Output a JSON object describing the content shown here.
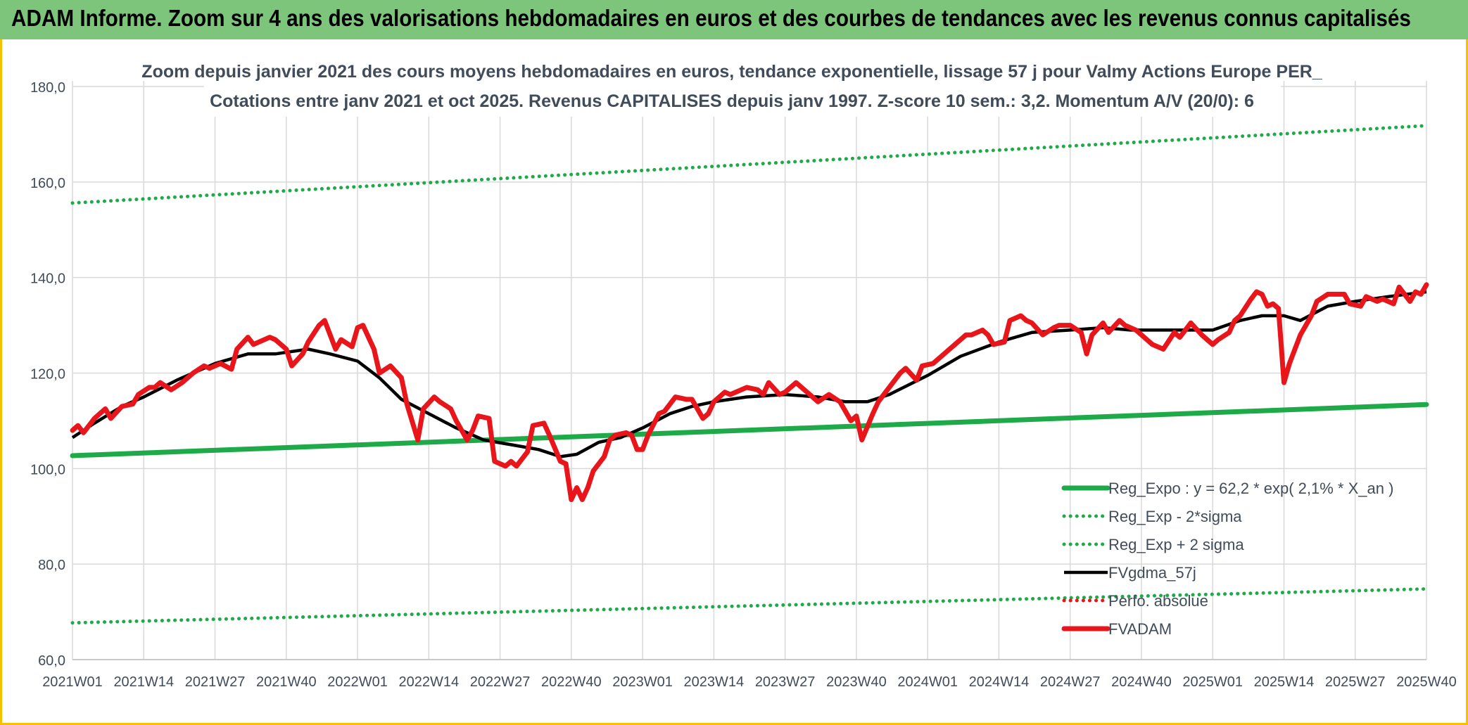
{
  "banner": {
    "title": "ADAM Informe. Zoom sur 4 ans des valorisations hebdomadaires en euros et des courbes de tendances avec les revenus connus capitalisés"
  },
  "colors": {
    "banner": "#7cc57b",
    "frame": "#f6c200",
    "reg_expo": "#1faa4a",
    "sigma": "#1faa4a",
    "gdma": "#000000",
    "perfo": "#e8151b",
    "fvadam": "#e8151b",
    "grid": "#d9d9d9",
    "text": "#404c5a"
  },
  "chart_data": {
    "type": "line",
    "title": "Zoom depuis janvier 2021 des cours moyens hebdomadaires en euros, tendance exponentielle, lissage 57 j pour Valmy Actions Europe PER_",
    "subtitle": "Cotations entre janv 2021 et oct 2025. Revenus CAPITALISES depuis janv 1997. Z-score 10 sem.: 3,2. Momentum A/V (20/0): 6",
    "xlabel": "",
    "ylabel": "",
    "ylim": [
      60,
      180
    ],
    "yticks": [
      "60,0",
      "80,0",
      "100,0",
      "120,0",
      "140,0",
      "160,0",
      "180,0"
    ],
    "xticks": [
      "2021W01",
      "2021W14",
      "2021W27",
      "2021W40",
      "2022W01",
      "2022W14",
      "2022W27",
      "2022W40",
      "2023W01",
      "2023W14",
      "2023W27",
      "2023W40",
      "2024W01",
      "2024W14",
      "2024W27",
      "2024W40",
      "2025W01",
      "2025W14",
      "2025W27",
      "2025W40"
    ],
    "grid": true,
    "legend_position": "bottom-right",
    "series": [
      {
        "name": "Reg_Expo : y = 62,2 * exp( 2,1% *  X_an )",
        "style": "solid-thick",
        "color": "#1faa4a",
        "x": [
          "2021W01",
          "2025W40"
        ],
        "y": [
          102.7,
          113.4
        ]
      },
      {
        "name": "Reg_Exp - 2*sigma",
        "style": "dotted",
        "color": "#1faa4a",
        "x": [
          "2021W01",
          "2025W40"
        ],
        "y": [
          67.7,
          74.8
        ]
      },
      {
        "name": "Reg_Exp + 2 sigma",
        "style": "dotted",
        "color": "#1faa4a",
        "x": [
          "2021W01",
          "2025W40"
        ],
        "y": [
          155.6,
          171.8
        ]
      },
      {
        "name": "FVgdma_57j",
        "style": "solid",
        "color": "#000000",
        "x": [
          "2021W01",
          "2021W05",
          "2021W10",
          "2021W14",
          "2021W20",
          "2021W27",
          "2021W33",
          "2021W38",
          "2021W44",
          "2021W48",
          "2022W01",
          "2022W05",
          "2022W09",
          "2022W14",
          "2022W19",
          "2022W24",
          "2022W29",
          "2022W34",
          "2022W38",
          "2022W41",
          "2022W45",
          "2022W49",
          "2023W01",
          "2023W06",
          "2023W10",
          "2023W14",
          "2023W20",
          "2023W27",
          "2023W33",
          "2023W38",
          "2023W42",
          "2023W46",
          "2024W01",
          "2024W07",
          "2024W14",
          "2024W20",
          "2024W27",
          "2024W33",
          "2024W38",
          "2024W46",
          "2025W01",
          "2025W06",
          "2025W10",
          "2025W14",
          "2025W17",
          "2025W22",
          "2025W27",
          "2025W33",
          "2025W40"
        ],
        "y": [
          106.5,
          109.5,
          113.0,
          115.0,
          118.5,
          122.0,
          124.0,
          124.0,
          125.0,
          124.0,
          122.5,
          119.0,
          114.5,
          111.5,
          108.5,
          106.0,
          105.0,
          104.0,
          102.5,
          103.0,
          105.5,
          106.5,
          108.5,
          111.5,
          113.0,
          114.0,
          115.0,
          115.5,
          115.0,
          114.0,
          114.0,
          115.5,
          119.5,
          123.5,
          126.5,
          128.5,
          129.0,
          129.5,
          129.0,
          129.0,
          129.0,
          131.0,
          132.0,
          132.0,
          131.0,
          134.0,
          135.0,
          136.0,
          137.0
        ]
      },
      {
        "name": "Perfo. absolue",
        "style": "dotted",
        "color": "#e8151b",
        "x": [],
        "y": []
      },
      {
        "name": "FVADAM",
        "style": "solid-thick",
        "color": "#e8151b",
        "x": [
          "2021W01",
          "2021W02",
          "2021W03",
          "2021W05",
          "2021W07",
          "2021W08",
          "2021W10",
          "2021W12",
          "2021W13",
          "2021W15",
          "2021W16",
          "2021W17",
          "2021W19",
          "2021W21",
          "2021W23",
          "2021W25",
          "2021W26",
          "2021W28",
          "2021W30",
          "2021W31",
          "2021W33",
          "2021W34",
          "2021W35",
          "2021W37",
          "2021W38",
          "2021W40",
          "2021W41",
          "2021W43",
          "2021W44",
          "2021W46",
          "2021W47",
          "2021W49",
          "2021W50",
          "2021W52",
          "2022W01",
          "2022W02",
          "2022W04",
          "2022W05",
          "2022W07",
          "2022W09",
          "2022W10",
          "2022W12",
          "2022W13",
          "2022W15",
          "2022W16",
          "2022W18",
          "2022W19",
          "2022W21",
          "2022W22",
          "2022W23",
          "2022W25",
          "2022W26",
          "2022W28",
          "2022W29",
          "2022W30",
          "2022W32",
          "2022W33",
          "2022W35",
          "2022W36",
          "2022W38",
          "2022W39",
          "2022W40",
          "2022W41",
          "2022W42",
          "2022W43",
          "2022W44",
          "2022W46",
          "2022W47",
          "2022W48",
          "2022W50",
          "2022W51",
          "2022W52",
          "2023W01",
          "2023W02",
          "2023W04",
          "2023W05",
          "2023W07",
          "2023W09",
          "2023W10",
          "2023W12",
          "2023W13",
          "2023W14",
          "2023W16",
          "2023W17",
          "2023W19",
          "2023W20",
          "2023W22",
          "2023W23",
          "2023W24",
          "2023W26",
          "2023W27",
          "2023W29",
          "2023W30",
          "2023W32",
          "2023W33",
          "2023W35",
          "2023W37",
          "2023W38",
          "2023W39",
          "2023W40",
          "2023W41",
          "2023W43",
          "2023W44",
          "2023W46",
          "2023W48",
          "2023W49",
          "2023W51",
          "2023W52",
          "2024W02",
          "2024W03",
          "2024W05",
          "2024W06",
          "2024W08",
          "2024W09",
          "2024W11",
          "2024W12",
          "2024W13",
          "2024W15",
          "2024W16",
          "2024W18",
          "2024W19",
          "2024W20",
          "2024W22",
          "2024W24",
          "2024W25",
          "2024W27",
          "2024W29",
          "2024W30",
          "2024W31",
          "2024W33",
          "2024W34",
          "2024W36",
          "2024W37",
          "2024W39",
          "2024W41",
          "2024W42",
          "2024W44",
          "2024W46",
          "2024W47",
          "2024W49",
          "2024W51",
          "2025W01",
          "2025W02",
          "2025W04",
          "2025W05",
          "2025W06",
          "2025W08",
          "2025W09",
          "2025W10",
          "2025W11",
          "2025W12",
          "2025W13",
          "2025W14",
          "2025W15",
          "2025W17",
          "2025W19",
          "2025W20",
          "2025W22",
          "2025W23",
          "2025W25",
          "2025W26",
          "2025W28",
          "2025W29",
          "2025W31",
          "2025W32",
          "2025W34",
          "2025W35",
          "2025W37",
          "2025W38",
          "2025W39",
          "2025W40"
        ],
        "y": [
          108.0,
          109.0,
          107.5,
          110.5,
          112.5,
          110.5,
          113.0,
          113.5,
          115.5,
          117.0,
          117.0,
          118.0,
          116.5,
          118.0,
          120.0,
          121.5,
          121.0,
          122.0,
          120.8,
          125.0,
          127.5,
          126.0,
          126.5,
          127.5,
          127.0,
          125.0,
          121.5,
          124.0,
          126.5,
          130.0,
          131.0,
          125.0,
          127.0,
          125.5,
          129.5,
          130.0,
          125.0,
          120.0,
          121.5,
          119.0,
          113.5,
          106.0,
          112.5,
          115.0,
          114.0,
          112.5,
          110.0,
          106.0,
          108.0,
          111.0,
          110.5,
          101.5,
          100.5,
          101.5,
          100.5,
          103.5,
          109.0,
          109.5,
          107.0,
          101.5,
          101.0,
          93.5,
          96.0,
          93.5,
          96.0,
          99.5,
          102.5,
          106.0,
          107.0,
          107.5,
          107.0,
          104.0,
          104.0,
          107.0,
          111.5,
          112.0,
          115.0,
          114.5,
          114.5,
          110.5,
          111.5,
          114.0,
          116.0,
          115.5,
          116.5,
          117.0,
          116.5,
          115.5,
          118.0,
          115.5,
          116.0,
          118.0,
          117.0,
          115.0,
          114.0,
          115.5,
          114.0,
          112.0,
          110.0,
          111.0,
          106.0,
          111.5,
          114.0,
          117.0,
          120.0,
          121.0,
          118.5,
          121.5,
          122.0,
          123.0,
          125.0,
          126.0,
          128.0,
          128.0,
          129.0,
          128.0,
          126.0,
          126.5,
          131.0,
          132.0,
          131.0,
          130.5,
          128.0,
          129.5,
          130.0,
          130.0,
          128.5,
          124.0,
          128.0,
          130.5,
          128.5,
          131.0,
          130.0,
          129.0,
          127.0,
          126.0,
          125.0,
          128.5,
          127.5,
          130.5,
          128.0,
          126.0,
          127.0,
          128.5,
          131.0,
          132.0,
          135.5,
          137.0,
          136.5,
          134.0,
          134.5,
          133.5,
          118.0,
          122.0,
          128.0,
          132.0,
          135.0,
          136.5,
          136.5,
          136.5,
          134.5,
          134.0,
          136.0,
          135.0,
          135.5,
          134.5,
          138.0,
          135.0,
          137.0,
          136.5,
          138.5
        ]
      }
    ]
  }
}
